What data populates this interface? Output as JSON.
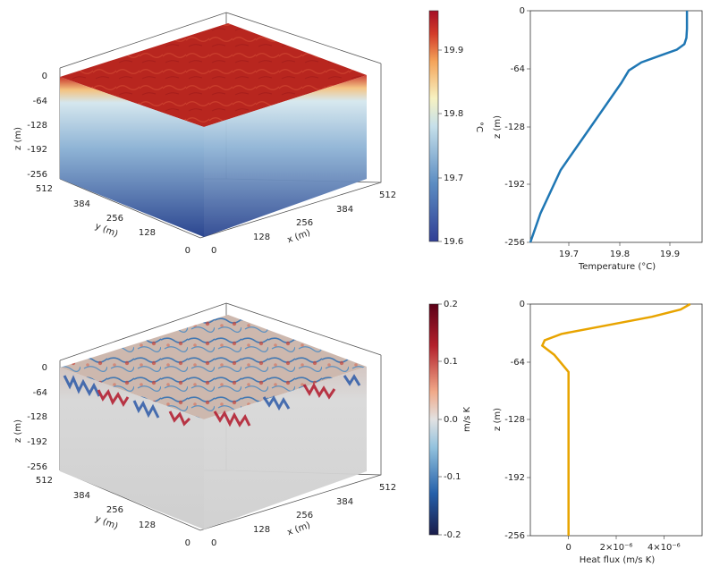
{
  "chart_data": [
    {
      "type": "surface3d",
      "field": "temperature",
      "x_ticks": [
        "0",
        "128",
        "256",
        "384",
        "512"
      ],
      "y_ticks": [
        "0",
        "128",
        "256",
        "384",
        "512"
      ],
      "z_ticks": [
        "0",
        "-64",
        "-128",
        "-192",
        "-256"
      ],
      "xlabel": "x (m)",
      "ylabel": "y (m)",
      "zlabel": "z (m)",
      "colorbar": {
        "label": "°C",
        "ticks": [
          "19.6",
          "19.7",
          "19.8",
          "19.9"
        ],
        "range": [
          19.6,
          19.96
        ],
        "colors": [
          "#3b4c9c",
          "#5a86c0",
          "#bcd8e8",
          "#f7f3c4",
          "#f2a65a",
          "#c53028",
          "#b2182b"
        ]
      },
      "colors": {
        "top": "#b7271f",
        "side_top": "#f2c48a",
        "side_mid": "#a9c7e0",
        "side_bottom": "#2f4a94"
      }
    },
    {
      "type": "line",
      "xlabel": "Temperature (°C)",
      "ylabel": "z (m)",
      "xlim": [
        19.64,
        19.98
      ],
      "ylim": [
        -256,
        0
      ],
      "x_ticks": [
        "19.7",
        "19.8",
        "19.9"
      ],
      "y_ticks": [
        "0",
        "-64",
        "-128",
        "-192",
        "-256"
      ],
      "color": "#1f77b4",
      "series": [
        {
          "x": [
            19.95,
            19.95,
            19.949,
            19.945,
            19.93,
            19.9,
            19.86,
            19.835,
            19.82,
            19.76,
            19.7,
            19.66,
            19.64
          ],
          "z": [
            0,
            -20,
            -30,
            -37,
            -43,
            -49,
            -57,
            -66,
            -80,
            -128,
            -176,
            -224,
            -256
          ]
        }
      ]
    },
    {
      "type": "surface3d",
      "field": "heat flux",
      "x_ticks": [
        "0",
        "128",
        "256",
        "384",
        "512"
      ],
      "y_ticks": [
        "0",
        "128",
        "256",
        "384",
        "512"
      ],
      "z_ticks": [
        "0",
        "-64",
        "-128",
        "-192",
        "-256"
      ],
      "xlabel": "x (m)",
      "ylabel": "y (m)",
      "zlabel": "z (m)",
      "colorbar": {
        "label": "m/s K",
        "ticks": [
          "0.2",
          "0.1",
          "0.0",
          "-0.1",
          "-0.2"
        ],
        "range": [
          -0.2,
          0.2
        ],
        "colors": [
          "#1b1d4d",
          "#2166ac",
          "#92c5de",
          "#dcdcdc",
          "#f4a582",
          "#b2182b",
          "#67001f"
        ]
      },
      "colors": {
        "top": "#c9b9b0",
        "side": "#d9d9d9"
      }
    },
    {
      "type": "line",
      "xlabel": "Heat flux (m/s K)",
      "ylabel": "z (m)",
      "xlim": [
        -1.6e-06,
        5.6e-06
      ],
      "ylim": [
        -256,
        0
      ],
      "x_ticks": [
        "0",
        "2×10⁻⁶",
        "4×10⁻⁶"
      ],
      "x_tick_values": [
        0,
        2e-06,
        4e-06
      ],
      "y_ticks": [
        "0",
        "-64",
        "-128",
        "-192",
        "-256"
      ],
      "color": "#e8a400",
      "series": [
        {
          "x": [
            5.1e-06,
            4.7e-06,
            3.5e-06,
            1.5e-06,
            -3e-07,
            -1e-06,
            -1.1e-06,
            -6e-07,
            0.0,
            0.0,
            0.0,
            0.0
          ],
          "z": [
            0,
            -6,
            -14,
            -24,
            -33,
            -40,
            -46,
            -56,
            -75,
            -128,
            -192,
            -256
          ]
        }
      ]
    }
  ]
}
